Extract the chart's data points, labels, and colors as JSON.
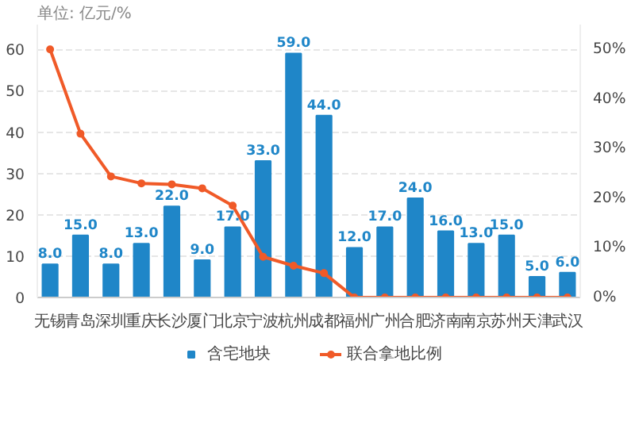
{
  "chart_data": {
    "type": "bar",
    "annotations": [
      "单位: 亿元/%"
    ],
    "categories": [
      "无锡",
      "青岛",
      "深圳",
      "重庆",
      "长沙",
      "厦门",
      "北京",
      "宁波",
      "杭州",
      "成都",
      "福州",
      "广州",
      "合肥",
      "济南",
      "南京",
      "苏州",
      "天津",
      "武汉"
    ],
    "series": [
      {
        "name": "含宅地块",
        "color": "#1f86c8",
        "values": [
          8,
          15,
          8,
          13,
          22,
          9,
          17,
          33,
          59,
          44,
          12,
          17,
          24,
          16,
          13,
          15,
          5,
          6
        ],
        "value_labels": [
          "8.0",
          "15.0",
          "8.0",
          "13.0",
          "22.0",
          "9.0",
          "17.0",
          "33.0",
          "59.0",
          "44.0",
          "12.0",
          "17.0",
          "24.0",
          "16.0",
          "13.0",
          "15.0",
          "5.0",
          "6.0"
        ]
      },
      {
        "name": "联合拿地比例",
        "color": "#f05a28",
        "type": "line",
        "axis": "y2",
        "marker": "circle",
        "values": [
          50,
          33,
          24.4,
          23,
          22.8,
          22,
          18.5,
          8.2,
          6.4,
          4.9,
          0,
          0,
          0,
          0,
          0,
          0,
          0,
          0
        ]
      }
    ],
    "ylim": [
      0,
      66
    ],
    "yticks": [
      0,
      10,
      20,
      30,
      40,
      50,
      60
    ],
    "y2lim": [
      0,
      55
    ],
    "y2ticks": [
      {
        "value": 0,
        "label": "0%"
      },
      {
        "value": 10,
        "label": "10%"
      },
      {
        "value": 20,
        "label": "20%"
      },
      {
        "value": 30,
        "label": "30%"
      },
      {
        "value": 40,
        "label": "40%"
      },
      {
        "value": 50,
        "label": "50%"
      }
    ],
    "grid": "y",
    "legend": "bottom"
  }
}
